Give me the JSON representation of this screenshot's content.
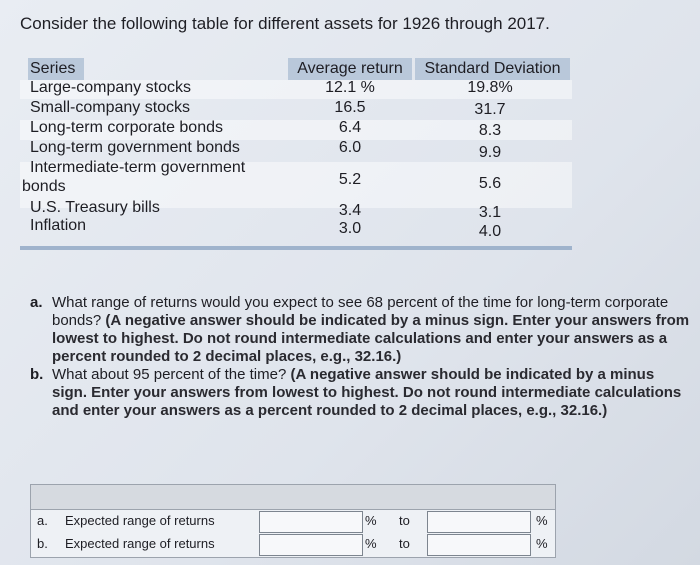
{
  "heading": "Consider the following table for different assets for 1926 through 2017.",
  "table": {
    "headers": [
      "Series",
      "Average return",
      "Standard Deviation"
    ],
    "rows": [
      [
        "Large-company stocks",
        "12.1 %",
        "19.8%"
      ],
      [
        "Small-company stocks",
        "16.5",
        "31.7"
      ],
      [
        "Long-term corporate bonds",
        "6.4",
        "8.3"
      ],
      [
        "Long-term government bonds",
        "6.0",
        "9.9"
      ],
      [
        "Intermediate-term government bonds",
        "5.2",
        "5.6"
      ],
      [
        "U.S. Treasury bills",
        "3.4",
        "3.1"
      ],
      [
        "Inflation",
        "3.0",
        "4.0"
      ]
    ]
  },
  "questions": [
    {
      "label": "a.",
      "text": "What range of returns would you expect to see 68 percent of the time for long-term corporate bonds?",
      "instruction": "(A negative answer should be indicated by a minus sign. Enter your answers from lowest to highest. Do not round intermediate calculations and enter your answers as a percent rounded to 2 decimal places, e.g., 32.16.)"
    },
    {
      "label": "b.",
      "text": "What about 95 percent of the time?",
      "instruction": "(A negative answer should be indicated by a minus sign. Enter your answers from lowest to highest. Do not round intermediate calculations and enter your answers as a percent rounded to 2 decimal places, e.g., 32.16.)"
    }
  ],
  "answers": {
    "rows": [
      {
        "label": "a.",
        "text": "Expected range of returns",
        "unit_low": "%",
        "separator": "to",
        "unit_high": "%"
      },
      {
        "label": "b.",
        "text": "Expected range of returns",
        "unit_low": "%",
        "separator": "to",
        "unit_high": "%"
      }
    ]
  }
}
